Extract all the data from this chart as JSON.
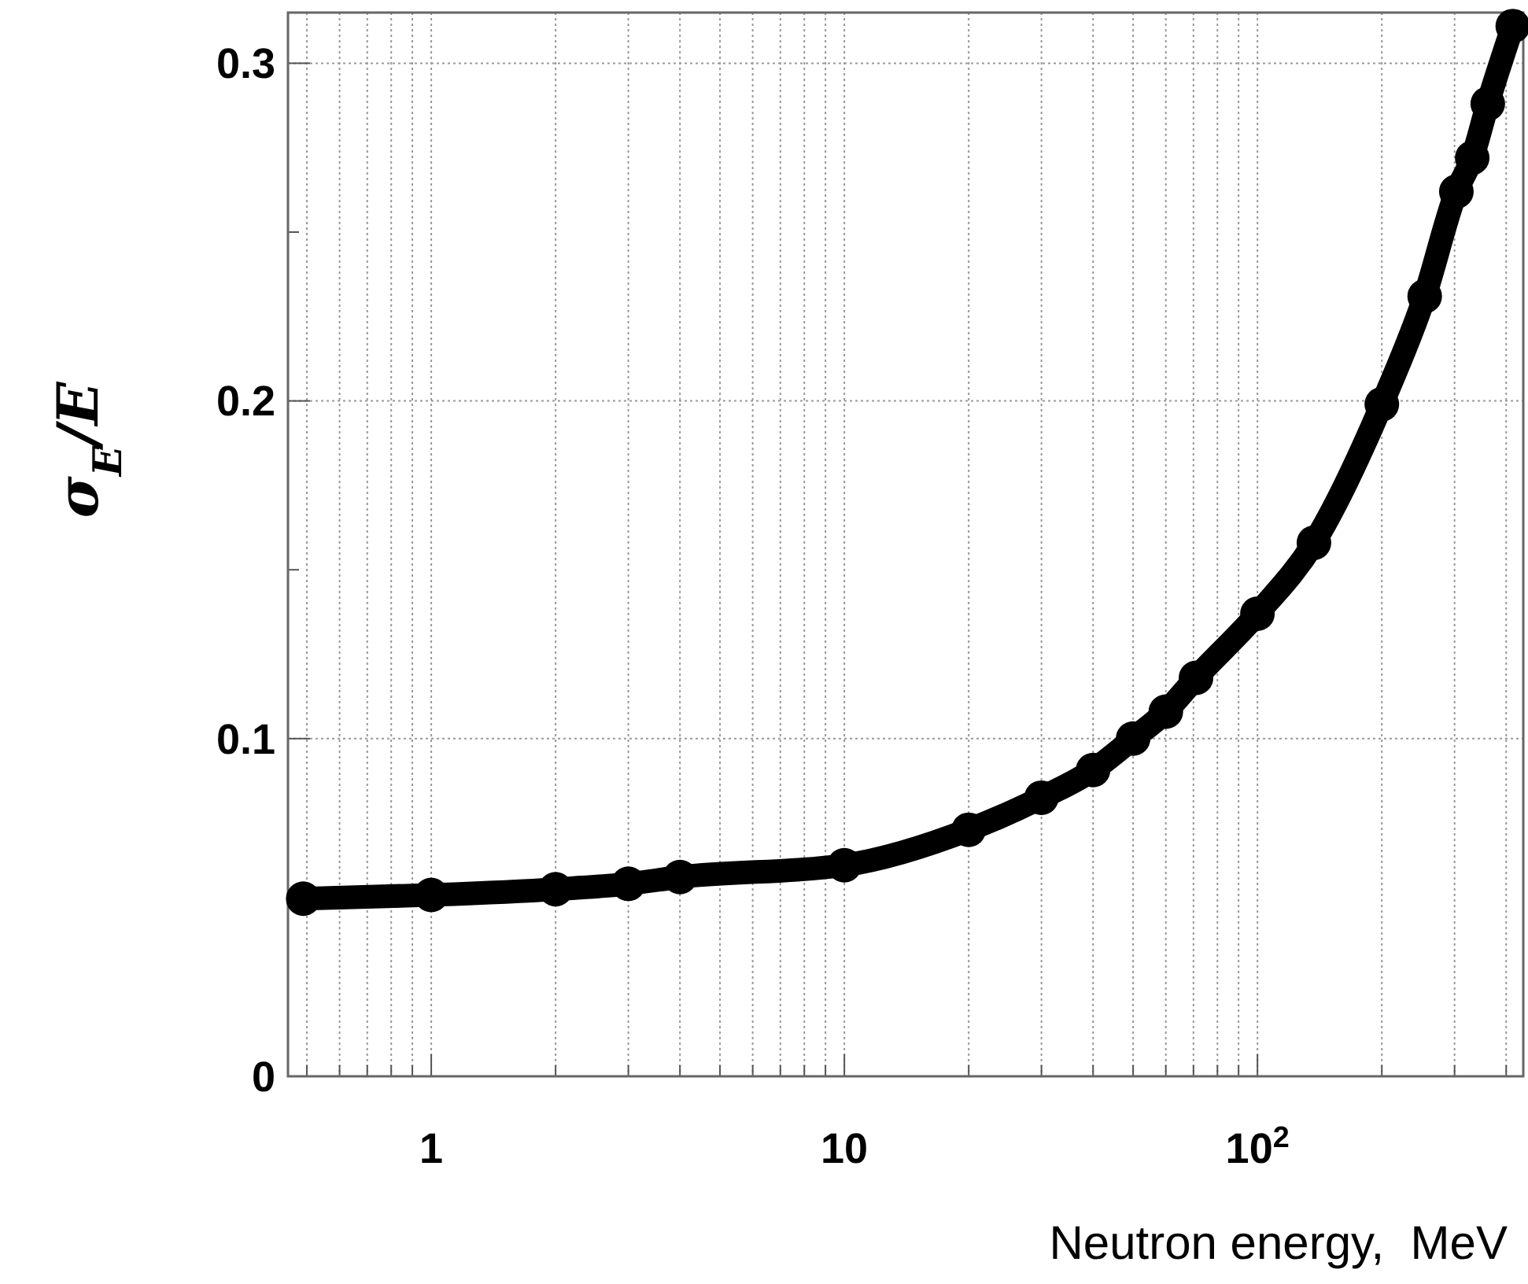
{
  "chart_data": {
    "type": "line",
    "xlabel": "Neutron energy,  MeV",
    "ylabel": "σ$_{E}$/E",
    "log": "x",
    "grid": true,
    "marker": "circle",
    "line_style": "solid",
    "xlim": [
      0.45,
      440
    ],
    "ylim": [
      0,
      0.315
    ],
    "xticks": [
      {
        "value": 0.5,
        "label": null
      },
      {
        "value": 0.6,
        "label": null
      },
      {
        "value": 0.7,
        "label": null
      },
      {
        "value": 0.8,
        "label": null
      },
      {
        "value": 0.9,
        "label": null
      },
      1,
      {
        "value": 2,
        "label": null
      },
      {
        "value": 3,
        "label": null
      },
      {
        "value": 4,
        "label": null
      },
      {
        "value": 5,
        "label": null
      },
      {
        "value": 6,
        "label": null
      },
      {
        "value": 7,
        "label": null
      },
      {
        "value": 8,
        "label": null
      },
      {
        "value": 9,
        "label": null
      },
      10,
      {
        "value": 20,
        "label": null
      },
      {
        "value": 30,
        "label": null
      },
      {
        "value": 40,
        "label": null
      },
      {
        "value": 50,
        "label": null
      },
      {
        "value": 60,
        "label": null
      },
      {
        "value": 70,
        "label": null
      },
      {
        "value": 80,
        "label": null
      },
      {
        "value": 90,
        "label": null
      },
      {
        "value": 100,
        "label": "10$^{2}$"
      },
      {
        "value": 200,
        "label": null
      },
      {
        "value": 300,
        "label": null
      },
      {
        "value": 400,
        "label": null
      }
    ],
    "yticks": [
      0,
      {
        "value": 0.05,
        "label": null
      },
      0.1,
      {
        "value": 0.15,
        "label": null
      },
      0.2,
      {
        "value": 0.25,
        "label": null
      },
      0.3
    ],
    "series": [
      {
        "color": "#000000",
        "x": [
          0.49,
          1,
          2,
          3,
          4,
          10,
          20,
          30,
          40,
          50,
          60,
          71,
          100,
          137,
          200,
          254,
          303,
          331,
          361,
          415
        ],
        "values": [
          0.0526,
          0.0537,
          0.0554,
          0.057,
          0.059,
          0.0625,
          0.073,
          0.0825,
          0.0907,
          0.1,
          0.108,
          0.118,
          0.137,
          0.158,
          0.199,
          0.231,
          0.262,
          0.272,
          0.288,
          0.311
        ]
      }
    ]
  }
}
